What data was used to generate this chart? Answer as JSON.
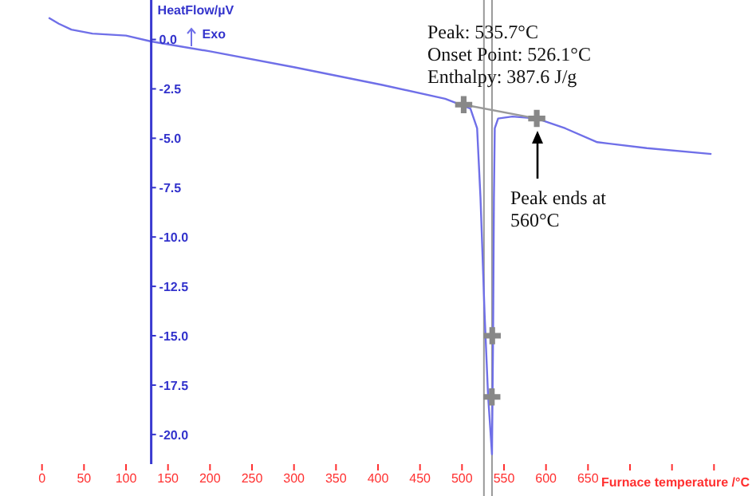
{
  "chart_data": {
    "type": "line",
    "xlabel": "Furnace temperature /°C",
    "ylabel": "HeatFlow/µV",
    "annotations": [
      "Peak: 535.7°C",
      "Onset Point: 526.1°C",
      "Enthalpy: 387.6 J/g",
      "Peak ends at 560°C",
      "Exo"
    ],
    "xlim": [
      -50,
      850
    ],
    "ylim": [
      -21.5,
      2
    ],
    "xticks": [
      0,
      50,
      100,
      150,
      200,
      250,
      300,
      350,
      400,
      450,
      500,
      550,
      600,
      650,
      {
        "value": 700,
        "label": null
      },
      {
        "value": 750,
        "label": null
      },
      {
        "value": 800,
        "label": null
      }
    ],
    "yticks": [
      {
        "value": 0,
        "label": "0.0"
      },
      {
        "value": -2.5,
        "label": "-2.5"
      },
      {
        "value": -5,
        "label": "-5.0"
      },
      {
        "value": -7.5,
        "label": "-7.5"
      },
      {
        "value": -10,
        "label": "-10.0"
      },
      {
        "value": -12.5,
        "label": "-12.5"
      },
      {
        "value": -15,
        "label": "-15.0"
      },
      {
        "value": -17.5,
        "label": "-17.5"
      },
      {
        "value": -20,
        "label": "-20.0"
      }
    ],
    "grid": false,
    "legend": false,
    "marker": "none",
    "series": [
      {
        "color": "#6f6fe8",
        "x": [
          8,
          20,
          35,
          60,
          100,
          130,
          200,
          300,
          405,
          480,
          510,
          518,
          522,
          527,
          531,
          535.7,
          537,
          538,
          539,
          543,
          560,
          589,
          623,
          661,
          720,
          797
        ],
        "values": [
          1.1,
          0.8,
          0.5,
          0.3,
          0.2,
          -0.1,
          -0.6,
          -1.4,
          -2.3,
          -3.0,
          -3.5,
          -4.5,
          -8,
          -14,
          -18,
          -21,
          -15,
          -8,
          -4.5,
          -4.0,
          -3.9,
          -4.0,
          -4.5,
          -5.2,
          -5.5,
          -5.8
        ]
      },
      {
        "type": "line",
        "color": "#999999",
        "x": [
          502,
          589
        ],
        "values": [
          -3.3,
          -4.0
        ]
      },
      {
        "type": "scatter",
        "marker": "cross",
        "color": "#888888",
        "x": [
          502,
          589,
          536,
          535.5
        ],
        "values": [
          -3.3,
          -4.0,
          -15.0,
          -18.1
        ]
      }
    ],
    "ref_lines": [
      {
        "axis": "x",
        "value": 526.1,
        "color": "#999999"
      },
      {
        "axis": "x",
        "value": 535.7,
        "color": "#999999"
      }
    ]
  }
}
